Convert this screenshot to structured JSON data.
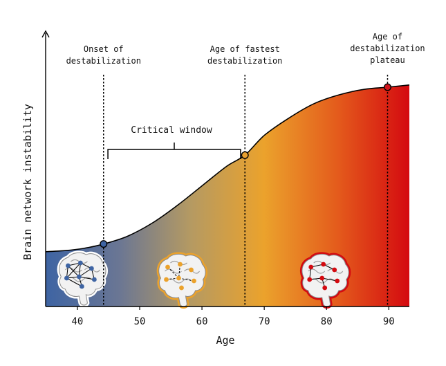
{
  "chart_data": {
    "type": "area",
    "xlabel": "Age",
    "ylabel": "Brain network instability",
    "xlim": [
      34.9,
      93.3
    ],
    "ylim": [
      0,
      1
    ],
    "x_ticks": [
      "40",
      "50",
      "60",
      "70",
      "80",
      "90"
    ],
    "curve": {
      "x": [
        34.9,
        38,
        41,
        44.2,
        48,
        52,
        56,
        60,
        64,
        66.9,
        70,
        74,
        78,
        82,
        86,
        89.8,
        93.3
      ],
      "y": [
        0.25,
        0.255,
        0.265,
        0.285,
        0.32,
        0.38,
        0.46,
        0.55,
        0.64,
        0.69,
        0.78,
        0.86,
        0.925,
        0.965,
        0.99,
        1.0,
        1.01
      ]
    },
    "gradient_colors": [
      "#3e64a3",
      "#6a7694",
      "#b59a62",
      "#eba22c",
      "#e45c1c",
      "#d40a10"
    ],
    "markers": [
      {
        "x": 44.2,
        "y": 0.285,
        "label_lines": [
          "Onset of",
          "destabilization"
        ],
        "color": "#3e64a3"
      },
      {
        "x": 66.9,
        "y": 0.69,
        "label_lines": [
          "Age of fastest",
          "destabilization"
        ],
        "color": "#e8a030"
      },
      {
        "x": 89.8,
        "y": 1.0,
        "label_lines": [
          "Age of",
          "destabilization",
          "plateau"
        ],
        "color": "#d0141c"
      }
    ],
    "brace": {
      "x_start": 44.9,
      "x_end": 66.2,
      "label": "Critical window"
    },
    "brains": [
      {
        "name": "young-brain",
        "x": 40.5,
        "fill": "#f2f2f2",
        "outline": "#ffffff",
        "node_color": "#3e64a3"
      },
      {
        "name": "middle-brain",
        "x": 56.5,
        "fill": "#f2f2f2",
        "outline": "#eba22c",
        "node_color": "#eba22c"
      },
      {
        "name": "old-brain",
        "x": 79.5,
        "fill": "#f2f2f2",
        "outline": "#d40a10",
        "node_color": "#d40a10"
      }
    ]
  }
}
